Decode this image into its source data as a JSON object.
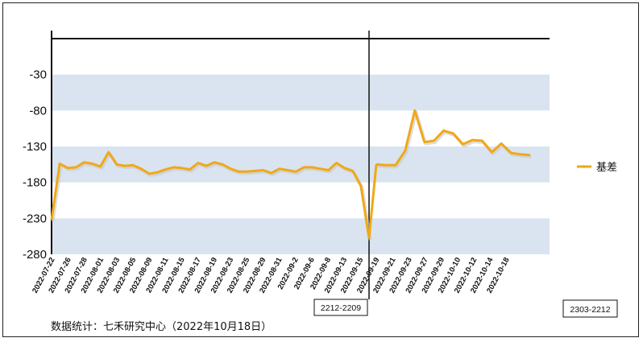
{
  "chart_data": {
    "type": "line",
    "title": "",
    "xlabel": "",
    "ylabel": "",
    "ylim": [
      -280,
      20
    ],
    "yticks": [
      -30,
      -80,
      -130,
      -180,
      -230,
      -280
    ],
    "ytick_labels": [
      "-30",
      "-80",
      "-130",
      "-180",
      "-230",
      "-280"
    ],
    "grid": "alternating horizontal bands",
    "legend_position": "right",
    "x_tick_labels": [
      "2022-07-22",
      "2022-07-26",
      "2022-07-28",
      "2022-08-01",
      "2022-08-03",
      "2022-08-05",
      "2022-08-09",
      "2022-08-11",
      "2022-08-15",
      "2022-08-17",
      "2022-08-19",
      "2022-08-23",
      "2022-08-25",
      "2022-08-29",
      "2022-08-31",
      "2022-09-2",
      "2022-09-6",
      "2022-09-8",
      "2022-09-13",
      "2022-09-15",
      "2022-09-19",
      "2022-09-21",
      "2022-09-23",
      "2022-09-27",
      "2022-09-29",
      "2022-10-10",
      "2022-10-12",
      "2022-10-14",
      "2022-10-18"
    ],
    "series": [
      {
        "name": "基差",
        "color": "#f0a818",
        "segments": [
          [
            -232,
            -154,
            -160,
            -159,
            -152,
            -154,
            -158,
            -138,
            -155,
            -157,
            -156,
            -161,
            -168,
            -166,
            -162,
            -159,
            -160,
            -162,
            -153,
            -157,
            -152,
            -155,
            -161,
            -165,
            -165,
            -164,
            -163,
            -167,
            -161,
            -163,
            -165,
            -159,
            -159,
            -161,
            -163,
            -153,
            -160,
            -164,
            -185,
            -258
          ],
          [
            -155,
            -156,
            -156,
            -136,
            -80,
            -124,
            -122,
            -108,
            -112,
            -127,
            -121,
            -122,
            -138,
            -126,
            -139,
            -141,
            -142
          ]
        ]
      }
    ],
    "vertical_marker_label": "2212-2209",
    "corner_label": "2303-2212"
  },
  "legend": {
    "label": "基差"
  },
  "source_note": "数据统计：七禾研究中心（2022年10月18日）",
  "colors": {
    "band": "#d9e4f0",
    "line": "#f0a818",
    "axis": "#111111"
  }
}
